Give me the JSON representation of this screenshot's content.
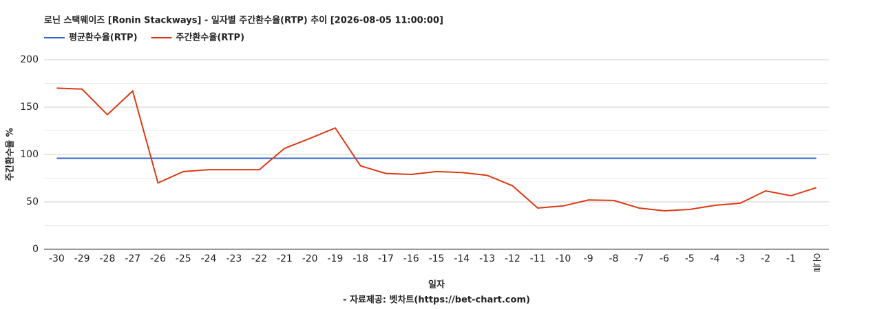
{
  "chart_data": {
    "type": "line",
    "title": "로닌 스택웨이즈 [Ronin Stackways] - 일자별 주간환수율(RTP) 추이 [2026-08-05 11:00:00]",
    "x_label": "일자",
    "y_label": "주간환수율 %",
    "source": "- 자료제공: 벳차트(https://bet-chart.com)",
    "categories": [
      "-30",
      "-29",
      "-28",
      "-27",
      "-26",
      "-25",
      "-24",
      "-23",
      "-22",
      "-21",
      "-20",
      "-19",
      "-18",
      "-17",
      "-16",
      "-15",
      "-14",
      "-13",
      "-12",
      "-11",
      "-10",
      "-9",
      "-8",
      "-7",
      "-6",
      "-5",
      "-4",
      "-3",
      "-2",
      "-1",
      "오늘"
    ],
    "series": [
      {
        "name": "평균환수율(RTP)",
        "color": "#3366cc",
        "values": [
          96,
          96,
          96,
          96,
          96,
          96,
          96,
          96,
          96,
          96,
          96,
          96,
          96,
          96,
          96,
          96,
          96,
          96,
          96,
          96,
          96,
          96,
          96,
          96,
          96,
          96,
          96,
          96,
          96,
          96,
          96
        ]
      },
      {
        "name": "주간환수율(RTP)",
        "color": "#dc3912",
        "values": [
          170,
          169,
          142,
          167,
          70,
          82,
          84,
          84,
          84,
          106.5,
          117,
          128,
          88,
          80,
          79,
          82,
          81,
          78,
          67,
          43.5,
          45.7,
          52,
          51.5,
          43.5,
          40.6,
          42,
          46.4,
          48.6,
          61.6,
          56.5,
          65
        ]
      }
    ],
    "ylim": [
      0,
      200
    ],
    "yticks": [
      0,
      50,
      100,
      150,
      200
    ],
    "minor_yticks": [
      25,
      75,
      125,
      175
    ],
    "grid": true
  }
}
